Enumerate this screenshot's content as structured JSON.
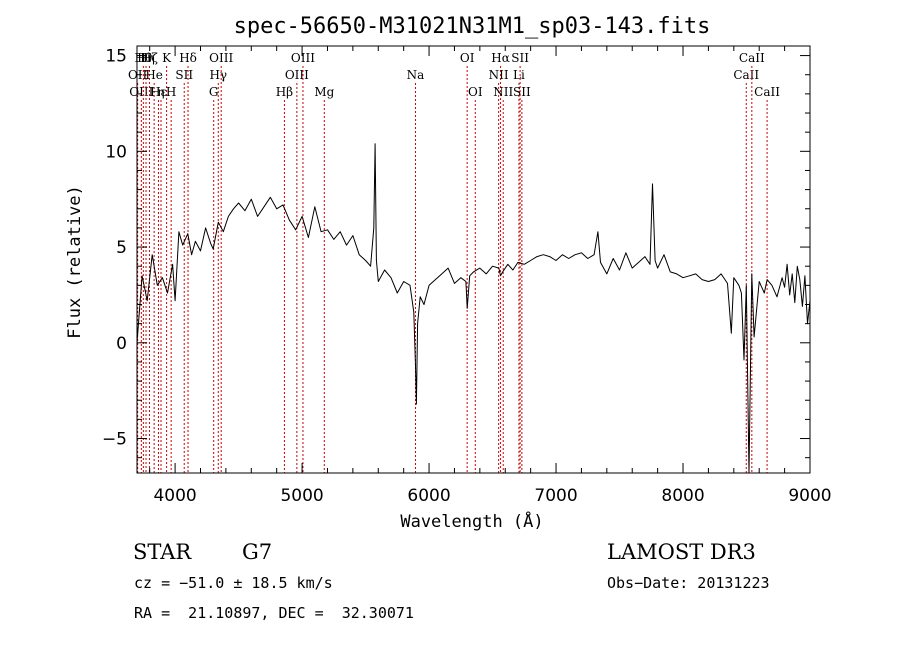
{
  "chart_data": {
    "type": "line",
    "title": "spec-56650-M31021N31M1_sp03-143.fits",
    "xlabel": "Wavelength (Å)",
    "ylabel": "Flux (relative)",
    "xlim": [
      3700,
      9000
    ],
    "ylim": [
      -6.8,
      15.5
    ],
    "xticks": [
      4000,
      5000,
      6000,
      7000,
      8000,
      9000
    ],
    "yticks": [
      -5,
      0,
      5,
      10,
      15
    ],
    "line_color": "#000000",
    "marker_color": "#cc0000",
    "series": [
      {
        "x": [
          3700,
          3740,
          3780,
          3820,
          3860,
          3900,
          3940,
          3980,
          4000,
          4030,
          4060,
          4100,
          4130,
          4160,
          4200,
          4240,
          4280,
          4300,
          4340,
          4380,
          4420,
          4460,
          4500,
          4550,
          4600,
          4650,
          4700,
          4750,
          4800,
          4850,
          4900,
          4950,
          5000,
          5050,
          5100,
          5150,
          5200,
          5250,
          5300,
          5350,
          5400,
          5450,
          5500,
          5540,
          5565,
          5575,
          5585,
          5600,
          5650,
          5700,
          5750,
          5800,
          5850,
          5880,
          5893,
          5900,
          5910,
          5930,
          5960,
          6000,
          6050,
          6100,
          6150,
          6200,
          6250,
          6290,
          6300,
          6320,
          6350,
          6400,
          6450,
          6500,
          6550,
          6563,
          6580,
          6620,
          6660,
          6700,
          6750,
          6800,
          6850,
          6900,
          6950,
          7000,
          7050,
          7100,
          7150,
          7200,
          7250,
          7300,
          7330,
          7350,
          7400,
          7450,
          7500,
          7550,
          7600,
          7650,
          7700,
          7740,
          7760,
          7780,
          7800,
          7850,
          7900,
          7950,
          8000,
          8050,
          8100,
          8150,
          8200,
          8250,
          8300,
          8350,
          8380,
          8400,
          8440,
          8460,
          8480,
          8498,
          8520,
          8542,
          8560,
          8600,
          8640,
          8662,
          8700,
          8740,
          8780,
          8800,
          8820,
          8840,
          8860,
          8880,
          8900,
          8920,
          8940,
          8960,
          8980,
          9000
        ],
        "y": [
          0.0,
          3.5,
          2.2,
          4.6,
          3.0,
          3.4,
          2.6,
          4.1,
          2.2,
          5.8,
          5.1,
          5.7,
          4.6,
          5.3,
          4.8,
          6.0,
          5.2,
          4.9,
          6.3,
          5.8,
          6.6,
          7.0,
          7.3,
          6.9,
          7.5,
          6.6,
          7.1,
          7.6,
          7.0,
          7.2,
          6.4,
          5.9,
          6.6,
          5.5,
          7.1,
          5.8,
          5.9,
          5.4,
          5.8,
          5.1,
          5.6,
          4.6,
          4.3,
          4.0,
          6.0,
          10.4,
          4.3,
          3.2,
          3.8,
          3.4,
          2.6,
          3.2,
          3.0,
          1.6,
          -1.2,
          -3.2,
          1.0,
          2.4,
          2.0,
          3.0,
          3.3,
          3.6,
          3.9,
          3.1,
          3.4,
          3.2,
          1.8,
          3.5,
          3.7,
          3.9,
          3.6,
          4.0,
          3.9,
          3.5,
          3.7,
          4.1,
          3.8,
          4.2,
          4.1,
          4.3,
          4.5,
          4.6,
          4.5,
          4.3,
          4.6,
          4.4,
          4.6,
          4.7,
          4.4,
          4.6,
          5.8,
          4.2,
          3.6,
          4.4,
          3.8,
          4.7,
          3.9,
          4.2,
          4.5,
          4.1,
          8.3,
          4.3,
          3.9,
          4.6,
          3.7,
          3.6,
          3.4,
          3.5,
          3.6,
          3.3,
          3.2,
          3.3,
          3.6,
          3.1,
          0.5,
          3.4,
          3.0,
          2.6,
          -0.9,
          3.0,
          -6.8,
          3.6,
          0.3,
          3.2,
          2.6,
          3.3,
          3.0,
          2.4,
          3.4,
          2.9,
          4.1,
          2.5,
          3.6,
          2.1,
          4.0,
          3.3,
          1.9,
          3.5,
          1.0,
          2.2
        ]
      }
    ],
    "lines": [
      {
        "w": 3705,
        "row": 1,
        "text": "OII"
      },
      {
        "w": 3734,
        "row": 2,
        "text": "OIII"
      },
      {
        "w": 3750,
        "row": 0,
        "text": "Hθ"
      },
      {
        "w": 3771,
        "row": 0,
        "text": "Hη"
      },
      {
        "w": 3798,
        "row": 0,
        "text": "Hζ"
      },
      {
        "w": 3835,
        "row": 1,
        "text": "He"
      },
      {
        "w": 3869,
        "row": 2,
        "text": "Hε"
      },
      {
        "w": 3889,
        "row": 2,
        "text": "η"
      },
      {
        "w": 3933,
        "row": 0,
        "text": "K"
      },
      {
        "w": 3969,
        "row": 2,
        "text": "H"
      },
      {
        "w": 4072,
        "row": 1,
        "text": "SII"
      },
      {
        "w": 4102,
        "row": 0,
        "text": "Hδ"
      },
      {
        "w": 4304,
        "row": 2,
        "text": "G"
      },
      {
        "w": 4340,
        "row": 1,
        "text": "Hγ"
      },
      {
        "w": 4363,
        "row": 0,
        "text": "OIII"
      },
      {
        "w": 4861,
        "row": 2,
        "text": "Hβ"
      },
      {
        "w": 4959,
        "row": 1,
        "text": "OIII"
      },
      {
        "w": 5007,
        "row": 0,
        "text": "OIII"
      },
      {
        "w": 5175,
        "row": 2,
        "text": "Mg"
      },
      {
        "w": 5893,
        "row": 1,
        "text": "Na"
      },
      {
        "w": 6300,
        "row": 0,
        "text": "OI"
      },
      {
        "w": 6364,
        "row": 2,
        "text": "OI"
      },
      {
        "w": 6548,
        "row": 1,
        "text": "NII"
      },
      {
        "w": 6563,
        "row": 0,
        "text": "Hα"
      },
      {
        "w": 6584,
        "row": 2,
        "text": "NII"
      },
      {
        "w": 6708,
        "row": 1,
        "text": "Li"
      },
      {
        "w": 6717,
        "row": 0,
        "text": "SII"
      },
      {
        "w": 6731,
        "row": 2,
        "text": "SII"
      },
      {
        "w": 8498,
        "row": 1,
        "text": "CaII"
      },
      {
        "w": 8542,
        "row": 0,
        "text": "CaII"
      },
      {
        "w": 8662,
        "row": 2,
        "text": "CaII"
      }
    ]
  },
  "info": {
    "class": "STAR",
    "subclass": "G7",
    "survey": "LAMOST DR3",
    "cz": "cz = −51.0 ± 18.5 km/s",
    "obs_date": "Obs−Date: 20131223",
    "coords": "RA =  21.10897, DEC =  32.30071"
  }
}
